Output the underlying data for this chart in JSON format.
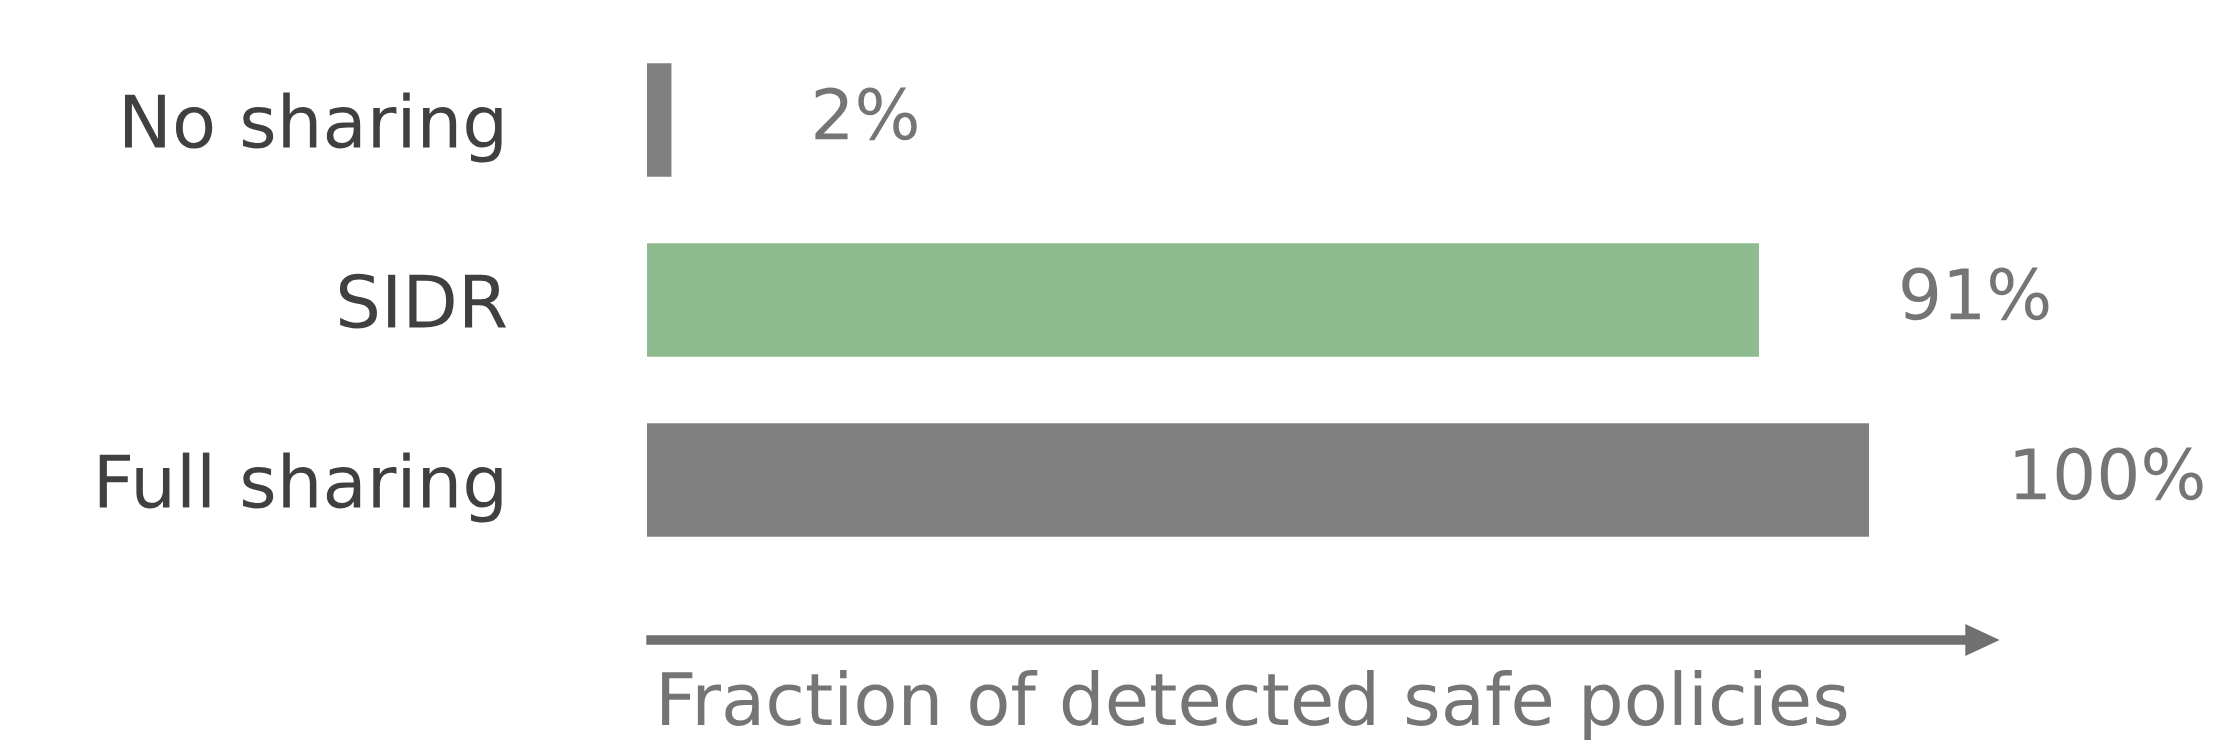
{
  "chart_data": {
    "type": "bar",
    "orientation": "horizontal",
    "xlabel": "Fraction of detected safe policies",
    "categories": [
      "No sharing",
      "SIDR",
      "Full sharing"
    ],
    "values": [
      2,
      91,
      100
    ],
    "colors": [
      "#808080",
      "#8fbc8f",
      "#808080"
    ],
    "value_labels": [
      "2%",
      "91%",
      "100%"
    ],
    "grid": false,
    "legend": false
  }
}
